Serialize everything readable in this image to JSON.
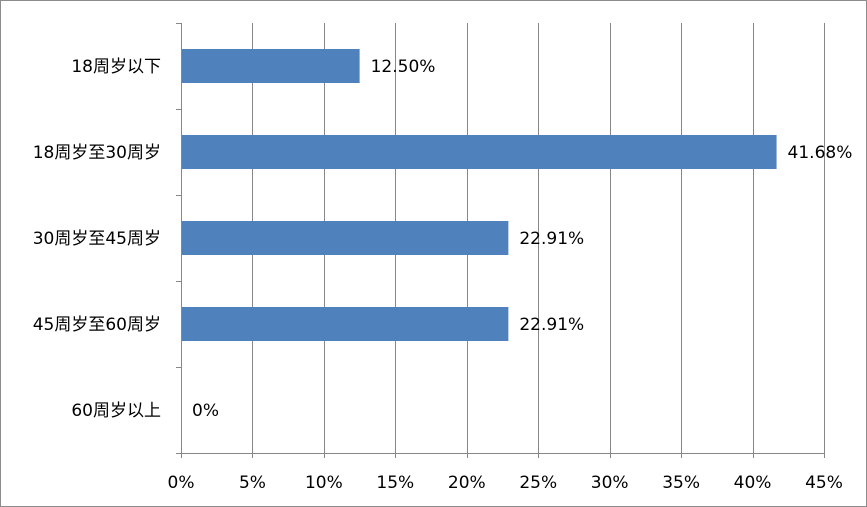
{
  "chart_data": {
    "type": "bar",
    "orientation": "horizontal",
    "categories": [
      "18周岁以下",
      "18周岁至30周岁",
      "30周岁至45周岁",
      "45周岁至60周岁",
      "60周岁以上"
    ],
    "values": [
      12.5,
      41.68,
      22.91,
      22.91,
      0
    ],
    "data_labels": [
      "12.50%",
      "41.68%",
      "22.91%",
      "22.91%",
      "0%"
    ],
    "xlim": [
      0,
      45
    ],
    "x_ticks": [
      0,
      5,
      10,
      15,
      20,
      25,
      30,
      35,
      40,
      45
    ],
    "x_tick_labels": [
      "0%",
      "5%",
      "10%",
      "15%",
      "20%",
      "25%",
      "30%",
      "35%",
      "40%",
      "45%"
    ],
    "title": "",
    "xlabel": "",
    "ylabel": "",
    "grid": "vertical",
    "legend": "none",
    "bar_color": "#4F81BD",
    "grid_color": "#878787"
  }
}
